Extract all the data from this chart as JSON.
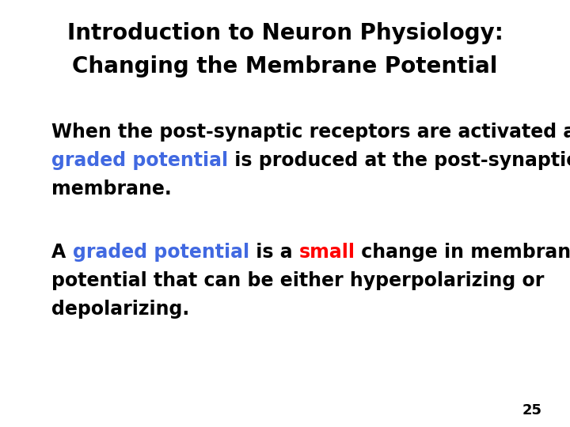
{
  "background_color": "#ffffff",
  "title_line1": "Introduction to Neuron Physiology:",
  "title_line2": "Changing the Membrane Potential",
  "title_color": "#000000",
  "title_fontsize": 20,
  "body_fontsize": 17,
  "page_number": "25",
  "page_number_fontsize": 13,
  "blue_color": "#4169E1",
  "red_color": "#ff0000",
  "black_color": "#000000"
}
